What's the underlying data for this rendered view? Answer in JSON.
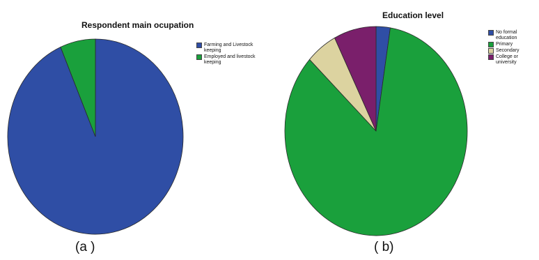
{
  "chart_data": [
    {
      "type": "pie",
      "title": "Respondent main ocupation",
      "sub_label": "(a )",
      "slices": [
        {
          "label": "Farming and Livestock keeping",
          "value": 93.5,
          "color": "#2f4ea5"
        },
        {
          "label": "Employed and livestock keeping",
          "value": 6.5,
          "color": "#1aa03c"
        }
      ],
      "legend_position": "right"
    },
    {
      "type": "pie",
      "title": "Education level",
      "sub_label": "( b)",
      "slices": [
        {
          "label": "No formal education",
          "value": 2.5,
          "color": "#2f4ea5"
        },
        {
          "label": "Primary",
          "value": 84.5,
          "color": "#1aa03c"
        },
        {
          "label": "Secondary",
          "value": 5.5,
          "color": "#dcd3a0"
        },
        {
          "label": "College or university",
          "value": 7.5,
          "color": "#7a1f6b"
        }
      ],
      "legend_position": "right"
    }
  ]
}
